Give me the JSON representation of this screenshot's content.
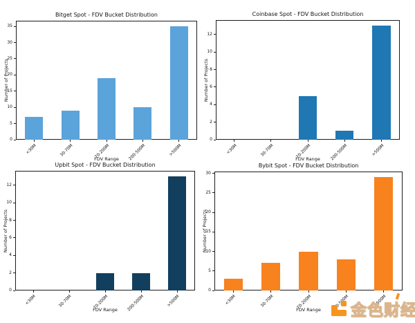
{
  "figure": {
    "background": "#ffffff",
    "spine_color": "#1a1a1a"
  },
  "watermark": {
    "text": "金色财经",
    "logo_color": "#f7941d",
    "outline_color": "#d8b288"
  },
  "chart_data": [
    {
      "type": "bar",
      "title": "Bitget Spot - FDV Bucket Distribution",
      "xlabel": "FDV Range",
      "ylabel": "Number of Projects",
      "categories": [
        "<30M",
        "30-70M",
        "70-200M",
        "200-500M",
        ">500M"
      ],
      "values": [
        7,
        9,
        19,
        10,
        35
      ],
      "yticks": [
        0,
        5,
        10,
        15,
        20,
        25,
        30,
        35
      ],
      "ylim": [
        0,
        36.75
      ],
      "bar_color": "#5ba3db",
      "grid": false,
      "legend": "none",
      "bar_width_fraction": 0.5
    },
    {
      "type": "bar",
      "title": "Coinbase Spot - FDV Bucket Distribution",
      "xlabel": "FDV Range",
      "ylabel": "Number of Projects",
      "categories": [
        "<30M",
        "30-70M",
        "70-200M",
        "200-500M",
        ">500M"
      ],
      "values": [
        0,
        0,
        5,
        1,
        13
      ],
      "yticks": [
        0,
        2,
        4,
        6,
        8,
        10,
        12
      ],
      "ylim": [
        0,
        13.65
      ],
      "bar_color": "#1f77b4",
      "grid": false,
      "legend": "none",
      "bar_width_fraction": 0.5
    },
    {
      "type": "bar",
      "title": "Upbit Spot - FDV Bucket Distribution",
      "xlabel": "FDV Range",
      "ylabel": "Number of Projects",
      "categories": [
        "<30M",
        "30-70M",
        "70-200M",
        "200-500M",
        ">500M"
      ],
      "values": [
        0,
        0,
        2,
        2,
        13
      ],
      "yticks": [
        0,
        2,
        4,
        6,
        8,
        10,
        12
      ],
      "ylim": [
        0,
        13.65
      ],
      "bar_color": "#123f5e",
      "grid": false,
      "legend": "none",
      "bar_width_fraction": 0.5
    },
    {
      "type": "bar",
      "title": "Bybit Spot - FDV Bucket Distribution",
      "xlabel": "FDV Range",
      "ylabel": "Number of Projects",
      "categories": [
        "<30M",
        "30-70M",
        "70-200M",
        "200-500M",
        ">500M"
      ],
      "values": [
        3,
        7,
        10,
        8,
        29
      ],
      "yticks": [
        0,
        5,
        10,
        15,
        20,
        25,
        30
      ],
      "ylim": [
        0,
        30.45
      ],
      "bar_color": "#f8821e",
      "grid": false,
      "legend": "none",
      "bar_width_fraction": 0.5
    }
  ]
}
